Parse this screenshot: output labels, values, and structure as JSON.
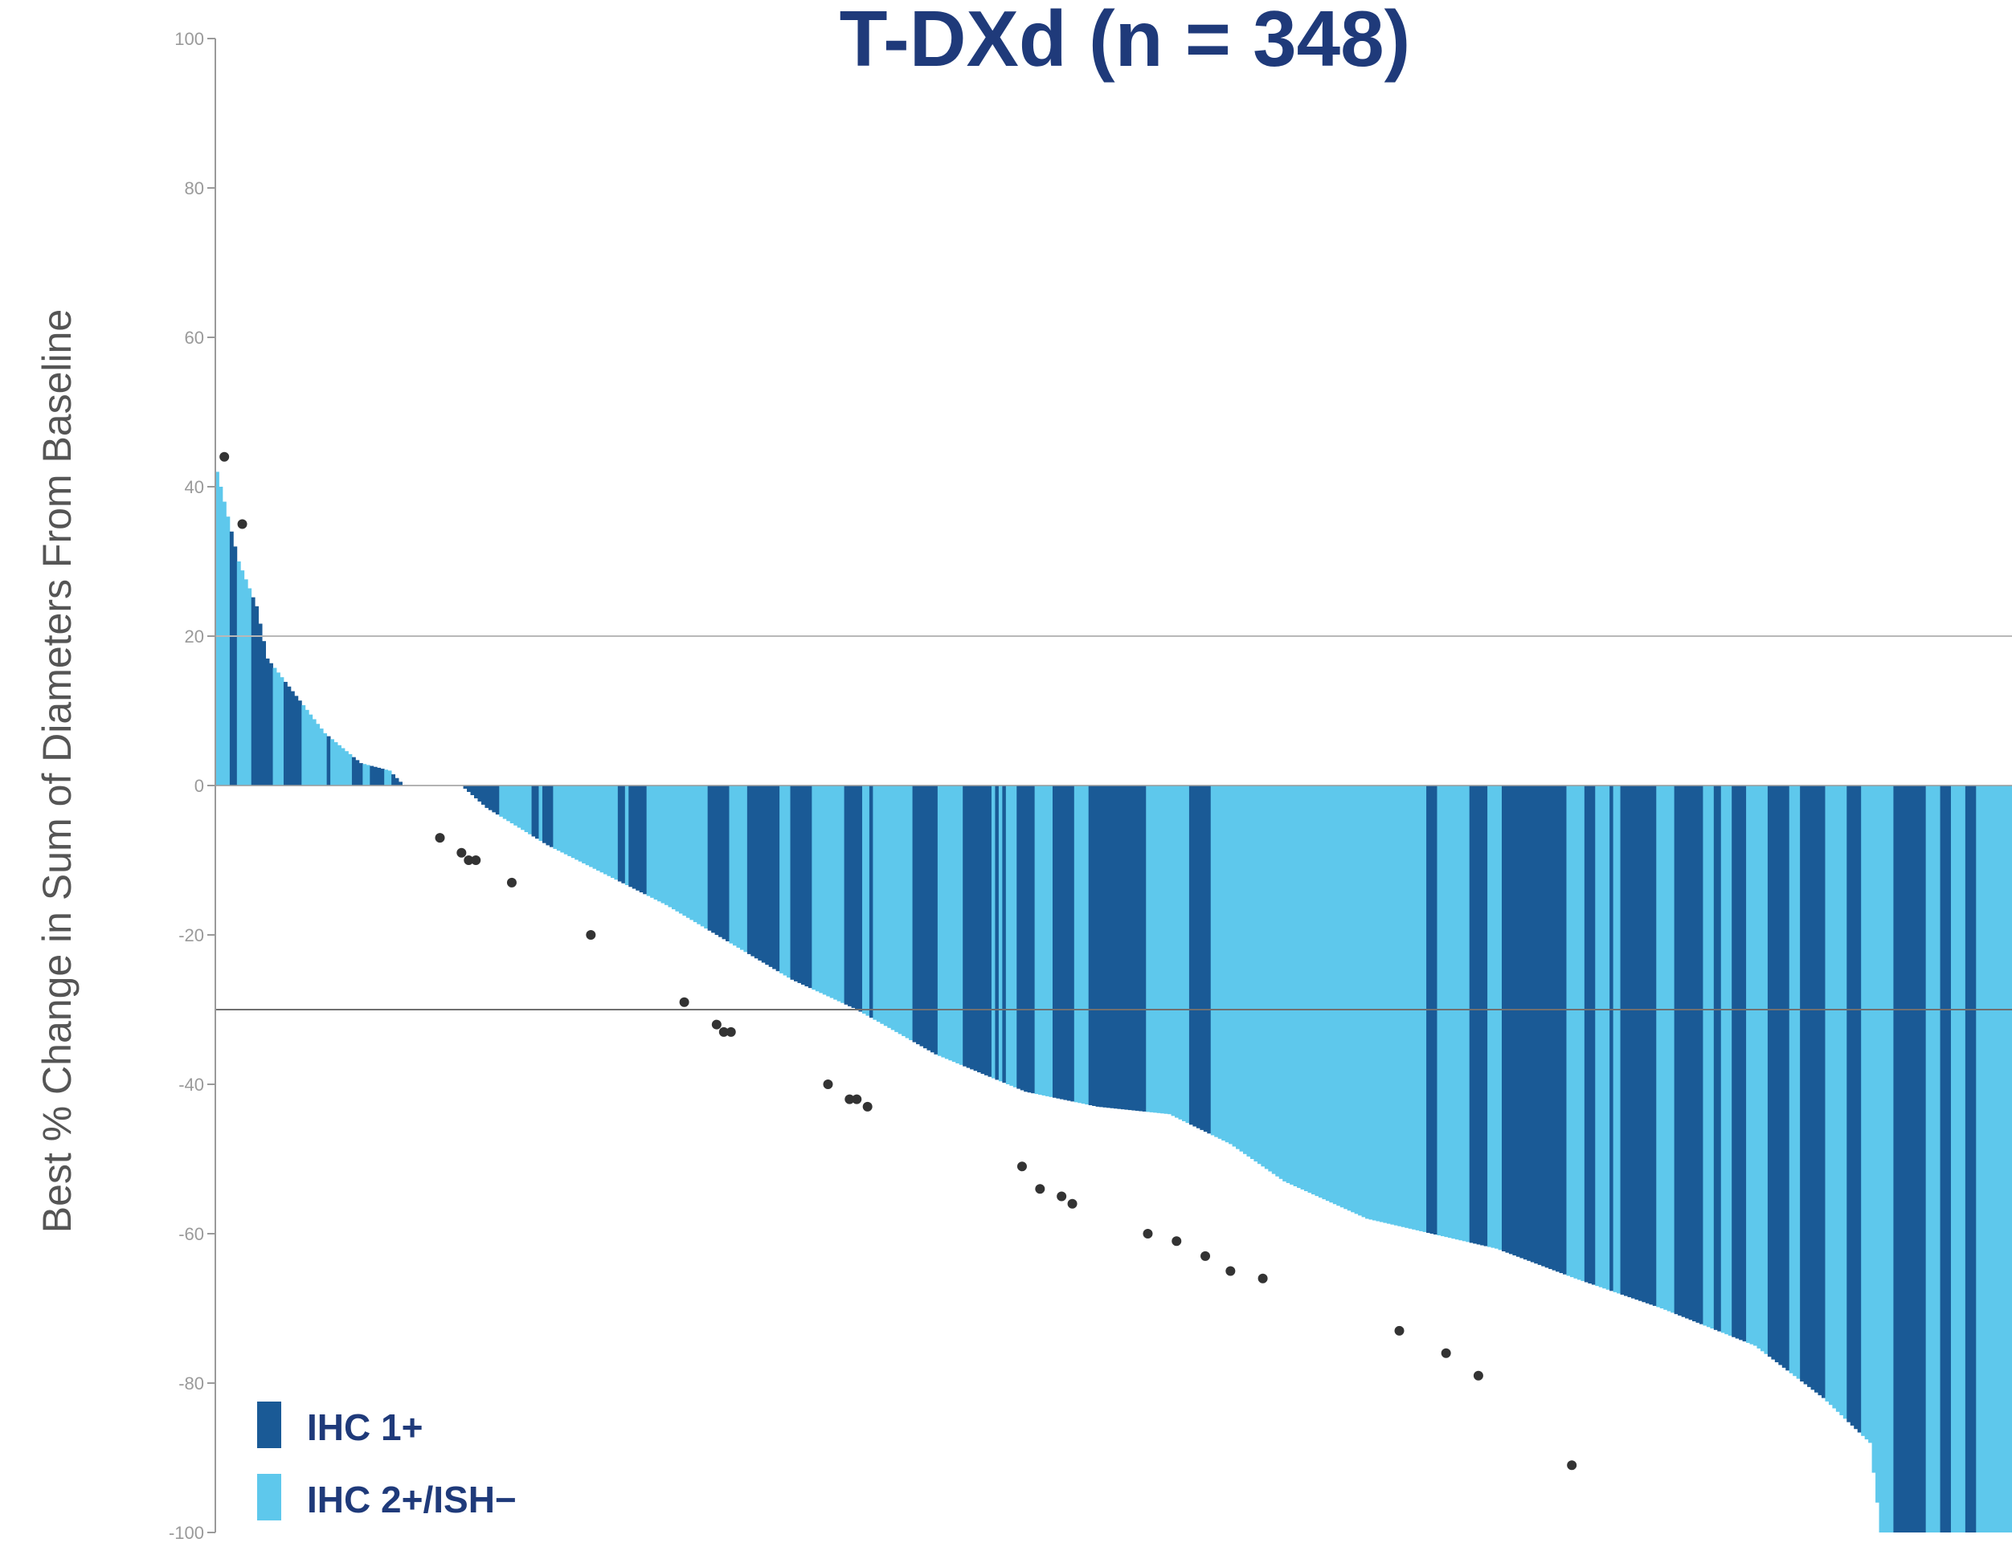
{
  "chart_data": {
    "type": "bar",
    "title": "T-DXd (n = 348)",
    "ylabel": "Best % Change in Sum of Diameters From Baseline",
    "xlabel": "",
    "ylim": [
      -100,
      100
    ],
    "yticks": [
      "100",
      "80",
      "60",
      "40",
      "20",
      "0",
      "-20",
      "-40",
      "-60",
      "-80",
      "-100"
    ],
    "reference_lines": [
      20,
      -30
    ],
    "grid": false,
    "legend_position": "bottom-left",
    "colors": {
      "IHC 1+": "#1a5a96",
      "IHC 2+/ISH−": "#5ec8ec",
      "marker": "#333333"
    },
    "series": [
      {
        "name": "IHC 1+",
        "color": "#1a5a96"
      },
      {
        "name": "IHC 2+/ISH−",
        "color": "#5ec8ec"
      }
    ],
    "anchors": [
      [
        0,
        42
      ],
      [
        6,
        30
      ],
      [
        11,
        24
      ],
      [
        14,
        17
      ],
      [
        22,
        12
      ],
      [
        30,
        7
      ],
      [
        40,
        3
      ],
      [
        48,
        2
      ],
      [
        52,
        0
      ],
      [
        68,
        0
      ],
      [
        75,
        -3
      ],
      [
        92,
        -8
      ],
      [
        125,
        -16
      ],
      [
        160,
        -26
      ],
      [
        178,
        -30
      ],
      [
        200,
        -36
      ],
      [
        225,
        -41
      ],
      [
        245,
        -43
      ],
      [
        265,
        -44
      ],
      [
        282,
        -48
      ],
      [
        297,
        -53
      ],
      [
        320,
        -58
      ],
      [
        356,
        -62
      ],
      [
        378,
        -66
      ],
      [
        402,
        -70
      ],
      [
        428,
        -75
      ],
      [
        447,
        -82
      ],
      [
        460,
        -88
      ],
      [
        463,
        -100
      ],
      [
        500,
        -100
      ]
    ],
    "bar_count": 500,
    "visible_bar_index_range": [
      0,
      500
    ],
    "progression_markers": [
      {
        "bar": 2,
        "value": 44
      },
      {
        "bar": 7,
        "value": 35
      },
      {
        "bar": 62,
        "value": -7
      },
      {
        "bar": 68,
        "value": -9
      },
      {
        "bar": 70,
        "value": -10
      },
      {
        "bar": 72,
        "value": -10
      },
      {
        "bar": 82,
        "value": -13
      },
      {
        "bar": 104,
        "value": -20
      },
      {
        "bar": 130,
        "value": -29
      },
      {
        "bar": 139,
        "value": -32
      },
      {
        "bar": 141,
        "value": -33
      },
      {
        "bar": 143,
        "value": -33
      },
      {
        "bar": 170,
        "value": -40
      },
      {
        "bar": 176,
        "value": -42
      },
      {
        "bar": 178,
        "value": -42
      },
      {
        "bar": 181,
        "value": -43
      },
      {
        "bar": 224,
        "value": -51
      },
      {
        "bar": 229,
        "value": -54
      },
      {
        "bar": 235,
        "value": -55
      },
      {
        "bar": 238,
        "value": -56
      },
      {
        "bar": 259,
        "value": -60
      },
      {
        "bar": 267,
        "value": -61
      },
      {
        "bar": 275,
        "value": -63
      },
      {
        "bar": 282,
        "value": -65
      },
      {
        "bar": 291,
        "value": -66
      },
      {
        "bar": 329,
        "value": -73
      },
      {
        "bar": 342,
        "value": -76
      },
      {
        "bar": 351,
        "value": -79
      },
      {
        "bar": 377,
        "value": -91
      }
    ]
  },
  "legend": {
    "ihc1": "IHC 1+",
    "ihc2": "IHC 2+/ISH−"
  }
}
